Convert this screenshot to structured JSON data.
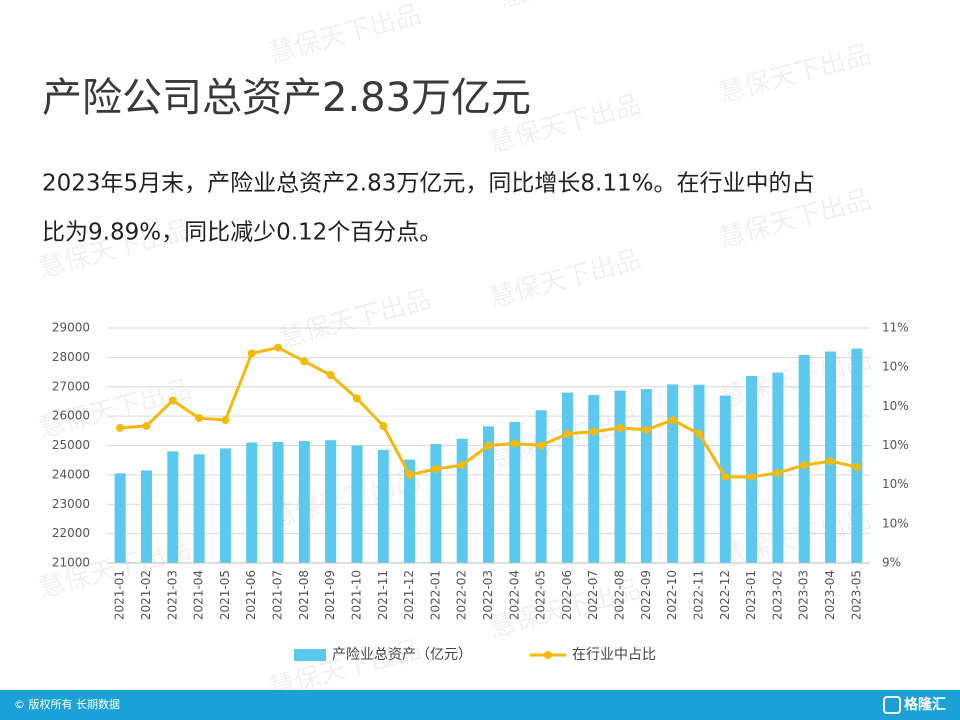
{
  "title": "产险公司总资产2.83万亿元",
  "paragraph": [
    "2023年5月末，产险业总资产2.83万亿元，同比增长8.11%。在行业中的占",
    "比为9.89%，同比减少0.12个百分点。"
  ],
  "watermark": "慧保天下出品",
  "footer": {
    "copyright": "© 版权所有 长期数据",
    "logo": "格隆汇"
  },
  "chart_data": {
    "type": "bar",
    "categories": [
      "2021-01",
      "2021-02",
      "2021-03",
      "2021-04",
      "2021-05",
      "2021-06",
      "2021-07",
      "2021-08",
      "2021-09",
      "2021-10",
      "2021-11",
      "2021-12",
      "2022-01",
      "2022-02",
      "2022-03",
      "2022-04",
      "2022-05",
      "2022-06",
      "2022-07",
      "2022-08",
      "2022-09",
      "2022-10",
      "2022-11",
      "2022-12",
      "2023-01",
      "2023-02",
      "2023-03",
      "2023-04",
      "2023-05"
    ],
    "series": [
      {
        "name": "产险业总资产（亿元）",
        "color": "#5bc8ef",
        "values": [
          24050,
          24150,
          24800,
          24700,
          24900,
          25100,
          25120,
          25150,
          25180,
          25000,
          24850,
          24520,
          25050,
          25230,
          25650,
          25800,
          26200,
          26800,
          26720,
          26870,
          26920,
          27080,
          27070,
          26700,
          27370,
          27480,
          28080,
          28200,
          28300
        ]
      },
      {
        "name": "在行业中占比",
        "color": "#f5b90a",
        "axis": "y2",
        "values": [
          10.09,
          10.1,
          10.23,
          10.14,
          10.13,
          10.47,
          10.5,
          10.43,
          10.36,
          10.24,
          10.1,
          9.85,
          9.88,
          9.9,
          10.0,
          10.01,
          10.0,
          10.06,
          10.07,
          10.09,
          10.08,
          10.13,
          10.06,
          9.84,
          9.84,
          9.86,
          9.9,
          9.92,
          9.89
        ]
      }
    ],
    "ylim": [
      21000,
      29000
    ],
    "yticks": [
      21000,
      22000,
      23000,
      24000,
      25000,
      26000,
      27000,
      28000,
      29000
    ],
    "y2lim": [
      9.4,
      10.6
    ],
    "y2ticks": [
      {
        "value": 9.4,
        "label": "9%"
      },
      {
        "value": 9.6,
        "label": "10%"
      },
      {
        "value": 9.8,
        "label": "10%"
      },
      {
        "value": 10.0,
        "label": "10%"
      },
      {
        "value": 10.2,
        "label": "10%"
      },
      {
        "value": 10.4,
        "label": "10%"
      },
      {
        "value": 10.6,
        "label": "11%"
      }
    ],
    "grid": true,
    "legend": "bottom"
  }
}
